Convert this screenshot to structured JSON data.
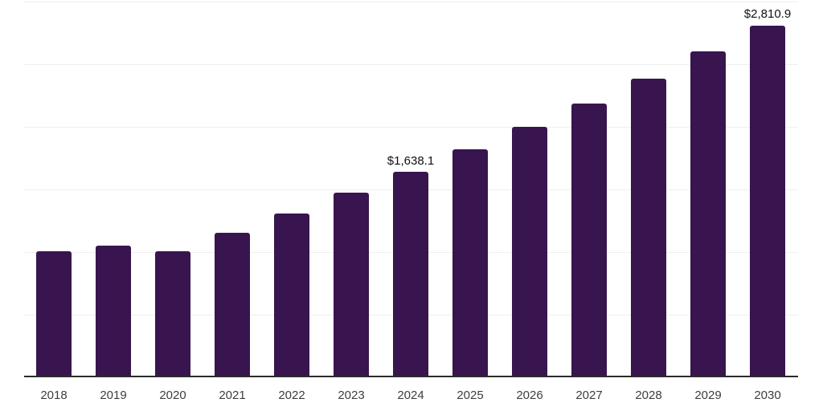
{
  "page": {
    "background_color": "#ffffff"
  },
  "chart_data": {
    "type": "bar",
    "title": "",
    "xlabel": "",
    "ylabel": "",
    "categories": [
      "2018",
      "2019",
      "2020",
      "2021",
      "2022",
      "2023",
      "2024",
      "2025",
      "2026",
      "2027",
      "2028",
      "2029",
      "2030"
    ],
    "values": [
      1004,
      1051,
      1008,
      1155,
      1308,
      1472,
      1638.1,
      1819,
      1998,
      2187,
      2385,
      2600,
      2810.9
    ],
    "data_labels": {
      "2024": "$1,638.1",
      "2030": "$2,810.9"
    },
    "ylim": [
      0,
      3000
    ],
    "gridline_values": [
      500,
      1000,
      1500,
      2000,
      2500,
      3000
    ],
    "grid": "horizontal",
    "legend": "none",
    "y_axis_tick_labels_visible": false,
    "colors": {
      "bar": "#38154e",
      "gridline": "#efefef",
      "axis_line": "#2b2b2b",
      "tick_label": "#3d3d3d",
      "data_label": "#111111"
    }
  }
}
